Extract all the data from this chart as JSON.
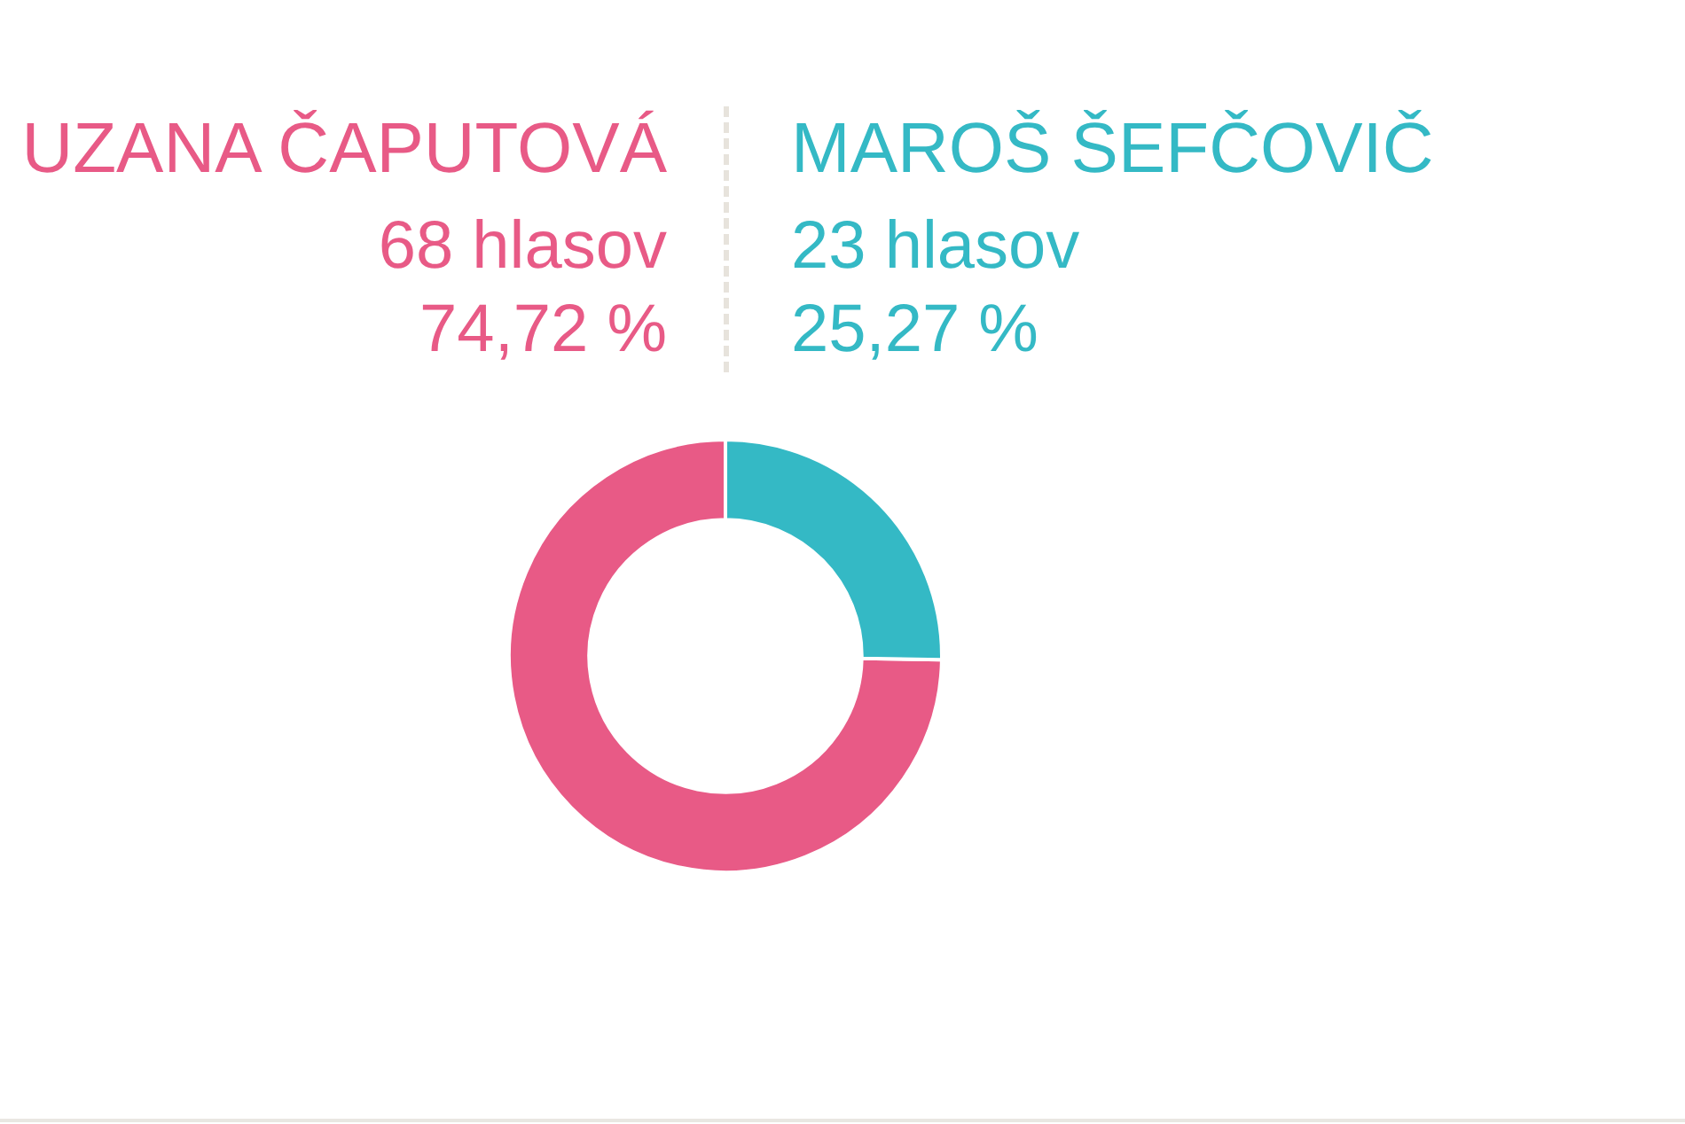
{
  "chart_data": {
    "type": "donut",
    "categories": [
      "UZANA ČAPUTOVÁ",
      "MAROŠ ŠEFČOVIČ"
    ],
    "values": [
      68,
      23
    ],
    "colors": [
      "#e85a86",
      "#34b9c5"
    ],
    "value_labels": [
      "68 hlasov\n74,72 %",
      "23 hlasov\n25,27 %"
    ]
  }
}
